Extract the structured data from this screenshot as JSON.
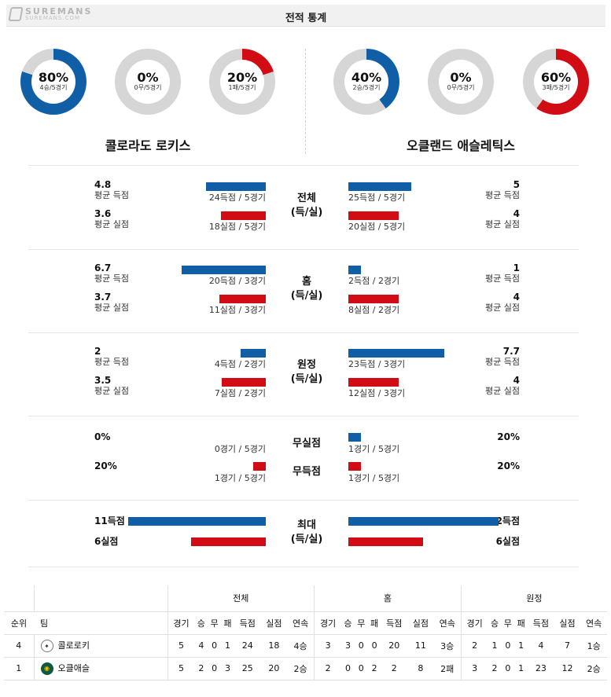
{
  "header": {
    "title": "전적 통계",
    "logo_main": "SUREMANS",
    "logo_sub": "SUREMANS.COM"
  },
  "colors": {
    "blue": "#0f5ea6",
    "red": "#d10c14",
    "gray": "#d6d6d6"
  },
  "teams": {
    "left": {
      "name": "콜로라도 로키스",
      "donuts": [
        {
          "pct": "80%",
          "sub": "4승/5경기",
          "fraction": 0.8,
          "color": "#0f5ea6"
        },
        {
          "pct": "0%",
          "sub": "0무/5경기",
          "fraction": 0,
          "color": "#d6d6d6"
        },
        {
          "pct": "20%",
          "sub": "1패/5경기",
          "fraction": 0.2,
          "color": "#d10c14"
        }
      ]
    },
    "right": {
      "name": "오클랜드 애슬레틱스",
      "donuts": [
        {
          "pct": "40%",
          "sub": "2승/5경기",
          "fraction": 0.4,
          "color": "#0f5ea6"
        },
        {
          "pct": "0%",
          "sub": "0무/5경기",
          "fraction": 0,
          "color": "#d6d6d6"
        },
        {
          "pct": "60%",
          "sub": "3패/5경기",
          "fraction": 0.6,
          "color": "#d10c14"
        }
      ]
    }
  },
  "sections": [
    {
      "center": [
        "전체",
        "(득/실)"
      ],
      "left": [
        {
          "value": "4.8",
          "label": "평균 득점",
          "caption": "24득점 / 5경기",
          "bar": 4.8,
          "color": "blue"
        },
        {
          "value": "3.6",
          "label": "평균 실점",
          "caption": "18실점 / 5경기",
          "bar": 3.6,
          "color": "red"
        }
      ],
      "right": [
        {
          "value": "5",
          "label": "평균 득점",
          "caption": "25득점 / 5경기",
          "bar": 5,
          "color": "blue"
        },
        {
          "value": "4",
          "label": "평균 실점",
          "caption": "20실점 / 5경기",
          "bar": 4,
          "color": "red"
        }
      ]
    },
    {
      "center": [
        "홈",
        "(득/실)"
      ],
      "left": [
        {
          "value": "6.7",
          "label": "평균 득점",
          "caption": "20득점 / 3경기",
          "bar": 6.7,
          "color": "blue"
        },
        {
          "value": "3.7",
          "label": "평균 실점",
          "caption": "11실점 / 3경기",
          "bar": 3.7,
          "color": "red"
        }
      ],
      "right": [
        {
          "value": "1",
          "label": "평균 득점",
          "caption": "2득점 / 2경기",
          "bar": 1,
          "color": "blue"
        },
        {
          "value": "4",
          "label": "평균 실점",
          "caption": "8실점 / 2경기",
          "bar": 4,
          "color": "red"
        }
      ]
    },
    {
      "center": [
        "원정",
        "(득/실)"
      ],
      "left": [
        {
          "value": "2",
          "label": "평균 득점",
          "caption": "4득점 / 2경기",
          "bar": 2,
          "color": "blue"
        },
        {
          "value": "3.5",
          "label": "평균 실점",
          "caption": "7실점 / 2경기",
          "bar": 3.5,
          "color": "red"
        }
      ],
      "right": [
        {
          "value": "7.7",
          "label": "평균 득점",
          "caption": "23득점 / 3경기",
          "bar": 7.7,
          "color": "blue"
        },
        {
          "value": "4",
          "label": "평균 실점",
          "caption": "12실점 / 3경기",
          "bar": 4,
          "color": "red"
        }
      ]
    }
  ],
  "shutout": {
    "center": [
      "무실점",
      "무득점"
    ],
    "left": [
      {
        "value": "0%",
        "caption": "0경기 / 5경기",
        "bar": 0,
        "color": "blue"
      },
      {
        "value": "20%",
        "caption": "1경기 / 5경기",
        "bar": 1,
        "color": "red"
      }
    ],
    "right": [
      {
        "value": "20%",
        "caption": "1경기 / 5경기",
        "bar": 1,
        "color": "blue"
      },
      {
        "value": "20%",
        "caption": "1경기 / 5경기",
        "bar": 1,
        "color": "red"
      }
    ]
  },
  "maximum": {
    "center": [
      "최대",
      "(득/실)"
    ],
    "left": [
      {
        "value": "11득점",
        "bar": 11,
        "color": "blue"
      },
      {
        "value": "6실점",
        "bar": 6,
        "color": "red"
      }
    ],
    "right": [
      {
        "value": "12득점",
        "bar": 12,
        "color": "blue"
      },
      {
        "value": "6실점",
        "bar": 6,
        "color": "red"
      }
    ]
  },
  "standings": {
    "groups": [
      "전체",
      "홈",
      "원정"
    ],
    "headers": {
      "rank": "순위",
      "team": "팀"
    },
    "cols": [
      "경기",
      "승",
      "무",
      "패",
      "득점",
      "실점",
      "연속"
    ],
    "rows": [
      {
        "rank": "4",
        "logo": "rockies-logo",
        "team": "콜로로키",
        "total": [
          "5",
          "4",
          "0",
          "1",
          "24",
          "18",
          "4승"
        ],
        "home": [
          "3",
          "3",
          "0",
          "0",
          "20",
          "11",
          "3승"
        ],
        "away": [
          "2",
          "1",
          "0",
          "1",
          "4",
          "7",
          "1승"
        ]
      },
      {
        "rank": "1",
        "logo": "athletics-logo",
        "team": "오클애슬",
        "total": [
          "5",
          "2",
          "0",
          "3",
          "25",
          "20",
          "2승"
        ],
        "home": [
          "2",
          "0",
          "0",
          "2",
          "2",
          "8",
          "2패"
        ],
        "away": [
          "3",
          "2",
          "0",
          "1",
          "23",
          "12",
          "2승"
        ]
      }
    ]
  }
}
